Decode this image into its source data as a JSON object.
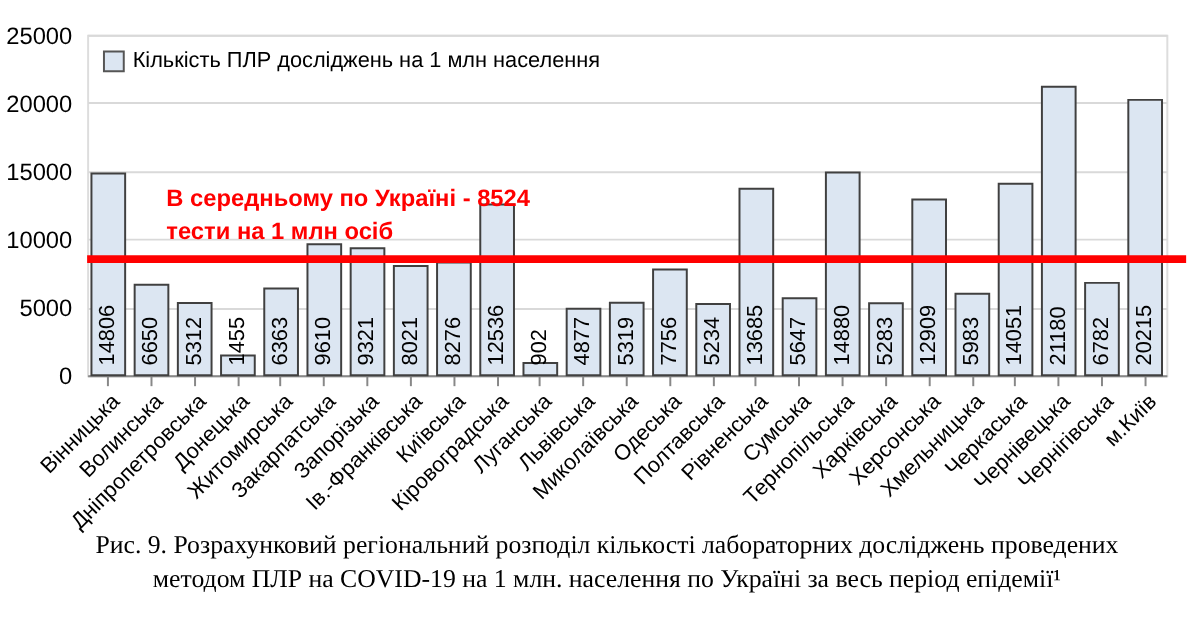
{
  "chart_data": {
    "type": "bar",
    "categories": [
      "Вінницька",
      "Волинська",
      "Дніпропетровська",
      "Донецька",
      "Житомирська",
      "Закарпатська",
      "Запорізька",
      "Ів.-Франківська",
      "Київська",
      "Кіровоградська",
      "Луганська",
      "Львівська",
      "Миколаївська",
      "Одеська",
      "Полтавська",
      "Рівненська",
      "Сумська",
      "Тернопільська",
      "Харківська",
      "Херсонська",
      "Хмельницька",
      "Черкаська",
      "Чернівецька",
      "Чернігівська",
      "м.Київ"
    ],
    "series": [
      {
        "name": "Кількість ПЛР досліджень на 1 млн населення",
        "color": "#dce6f2",
        "values": [
          14806,
          6650,
          5312,
          1455,
          6363,
          9610,
          9321,
          8021,
          8276,
          12536,
          902,
          4877,
          5319,
          7756,
          5234,
          13685,
          5647,
          14880,
          5283,
          12909,
          5983,
          14051,
          21180,
          6782,
          20215
        ]
      }
    ],
    "ylim": [
      0,
      25000
    ],
    "yticks": [
      0,
      5000,
      10000,
      15000,
      20000,
      25000
    ],
    "grid": "y",
    "legend": "top left",
    "data_labels": true,
    "ref_lines": [
      {
        "axis": "y",
        "value": 8524,
        "label": "В  середньому  по  Україні  -  8524\nтести на 1 млн осіб",
        "color": "#ff0000"
      }
    ],
    "annotations": [
      "Рис. 9. Розрахунковий регіональний розподіл кількості лабораторних досліджень проведених",
      "методом ПЛР на COVID-19 на 1 млн. населення по Україні за весь період епідемії¹"
    ]
  }
}
